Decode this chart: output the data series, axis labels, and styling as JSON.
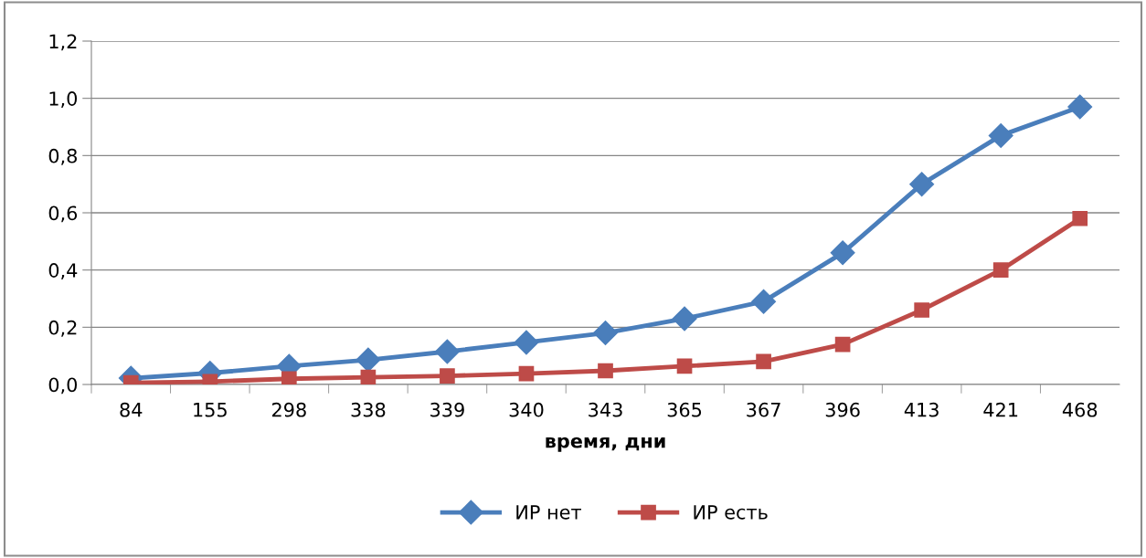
{
  "chart_data": {
    "type": "line",
    "xlabel": "время, дни",
    "categories": [
      "84",
      "155",
      "298",
      "338",
      "339",
      "340",
      "343",
      "365",
      "367",
      "396",
      "413",
      "421",
      "468"
    ],
    "series": [
      {
        "name": "ИР нет",
        "color": "#4a7ebb",
        "marker": "diamond",
        "values": [
          0.022,
          0.04,
          0.064,
          0.086,
          0.115,
          0.147,
          0.18,
          0.23,
          0.29,
          0.46,
          0.7,
          0.87,
          0.97
        ]
      },
      {
        "name": "ИР есть",
        "color": "#be4b48",
        "marker": "square",
        "values": [
          0.006,
          0.01,
          0.02,
          0.025,
          0.03,
          0.038,
          0.048,
          0.064,
          0.08,
          0.14,
          0.26,
          0.4,
          0.58
        ]
      }
    ],
    "ylim": [
      0,
      1.2
    ],
    "yticks": [
      {
        "value": 0,
        "label": "0,0"
      },
      {
        "value": 0.2,
        "label": "0,2"
      },
      {
        "value": 0.4,
        "label": "0,4"
      },
      {
        "value": 0.6,
        "label": "0,6"
      },
      {
        "value": 0.8,
        "label": "0,8"
      },
      {
        "value": 1.0,
        "label": "1,0"
      },
      {
        "value": 1.2,
        "label": "1,2"
      }
    ],
    "grid": "y",
    "legend": "bottom",
    "line_style": "solid"
  }
}
